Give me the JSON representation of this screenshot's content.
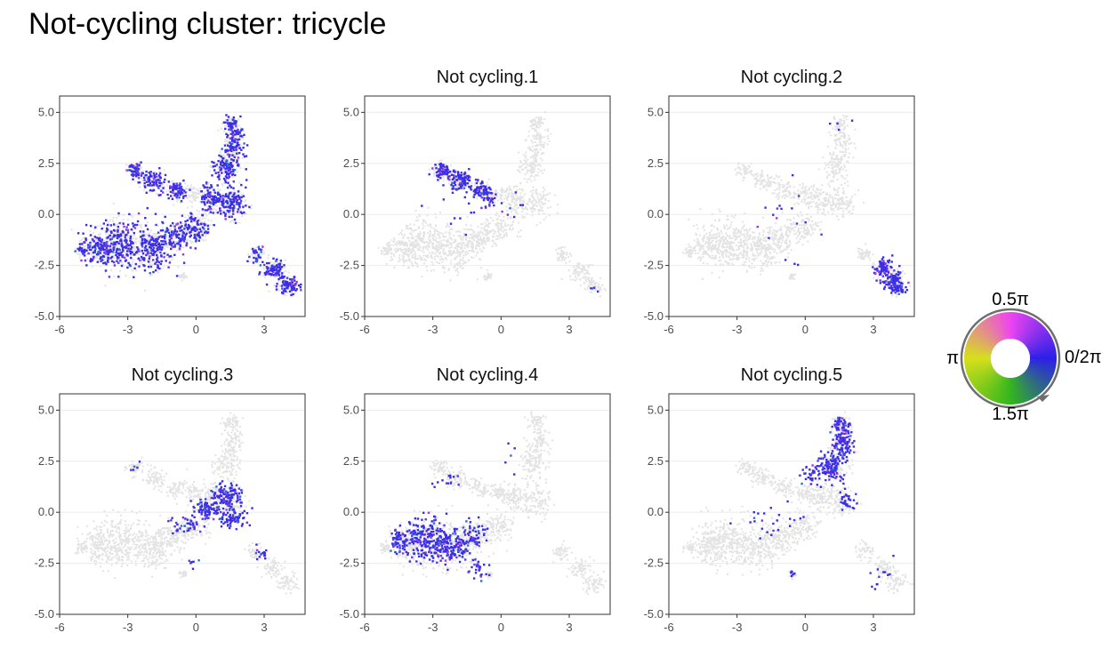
{
  "title": "Not-cycling cluster: tricycle",
  "colors": {
    "background_point": "#e3e3e3",
    "grid": "#ebebeb",
    "panel_border": "#333333",
    "tick_label": "#4d4d4d",
    "point_main": "#3a2ee6",
    "point_alt": [
      "#4f3df0",
      "#6a34e8",
      "#2f6fd0",
      "#9a3ae0"
    ],
    "wheel_stops": [
      {
        "angle": 0,
        "color": "#2b1fe8"
      },
      {
        "angle": 0.25,
        "color": "#ee44f0"
      },
      {
        "angle": 0.5,
        "color": "#d6e01a"
      },
      {
        "angle": 0.75,
        "color": "#33b61d"
      },
      {
        "angle": 1.0,
        "color": "#2b1fe8"
      }
    ]
  },
  "legend": {
    "labels": {
      "top": "0.5π",
      "right": "0/2π",
      "left": "π",
      "bottom": "1.5π"
    }
  },
  "chart_data": {
    "type": "scatter",
    "description_free": true,
    "xlim": [
      -6,
      4.8
    ],
    "ylim": [
      -5,
      5.8
    ],
    "x_ticks": [
      -6,
      -3,
      0,
      3
    ],
    "x_tick_labels": [
      "-6",
      "-3",
      "0",
      "3"
    ],
    "y_ticks": [
      -5,
      -2.5,
      0,
      2.5,
      5
    ],
    "y_tick_labels": [
      "-5.0",
      "-2.5",
      "0.0",
      "2.5",
      "5.0"
    ],
    "grid": true,
    "legend_position": "right",
    "background_shape": [
      [
        -5.1,
        -1.7,
        0.25,
        0.25
      ],
      [
        -4.3,
        -1.6,
        0.6,
        0.7
      ],
      [
        -3.4,
        -1.4,
        1.1,
        1.1
      ],
      [
        -2.0,
        -1.7,
        0.9,
        0.9
      ],
      [
        -1.0,
        -1.1,
        0.7,
        0.6
      ],
      [
        -0.1,
        -0.6,
        0.6,
        0.6
      ],
      [
        -2.7,
        2.2,
        0.35,
        0.35
      ],
      [
        -1.9,
        1.7,
        0.5,
        0.45
      ],
      [
        -0.9,
        1.2,
        0.45,
        0.4
      ],
      [
        -0.1,
        1.0,
        0.4,
        0.4
      ],
      [
        0.6,
        0.8,
        0.5,
        0.6
      ],
      [
        1.5,
        0.6,
        0.6,
        0.7
      ],
      [
        1.3,
        2.4,
        0.5,
        0.7
      ],
      [
        1.6,
        3.6,
        0.4,
        0.8
      ],
      [
        1.5,
        4.5,
        0.3,
        0.3
      ],
      [
        2.6,
        -1.9,
        0.35,
        0.35
      ],
      [
        3.4,
        -2.7,
        0.45,
        0.45
      ],
      [
        4.0,
        -3.4,
        0.45,
        0.4
      ],
      [
        -0.6,
        -3.0,
        0.15,
        0.15
      ]
    ],
    "panels": [
      {
        "title": "",
        "clusters": [
          [
            -5.1,
            -1.7,
            0.25,
            0.25,
            20
          ],
          [
            -4.3,
            -1.6,
            0.6,
            0.7,
            90
          ],
          [
            -3.4,
            -1.4,
            1.1,
            1.1,
            200
          ],
          [
            -2.0,
            -1.7,
            0.9,
            0.9,
            150
          ],
          [
            -1.0,
            -1.1,
            0.7,
            0.6,
            90
          ],
          [
            -0.1,
            -0.6,
            0.6,
            0.6,
            80
          ],
          [
            -2.7,
            2.2,
            0.35,
            0.35,
            50
          ],
          [
            -1.9,
            1.7,
            0.5,
            0.45,
            70
          ],
          [
            -0.9,
            1.2,
            0.45,
            0.4,
            60
          ],
          [
            0.6,
            0.8,
            0.5,
            0.6,
            80
          ],
          [
            1.5,
            0.6,
            0.6,
            0.7,
            110
          ],
          [
            1.3,
            2.4,
            0.5,
            0.7,
            110
          ],
          [
            1.6,
            3.6,
            0.4,
            0.8,
            90
          ],
          [
            1.5,
            4.5,
            0.3,
            0.3,
            30
          ],
          [
            3.4,
            -2.7,
            0.45,
            0.45,
            80
          ],
          [
            4.0,
            -3.4,
            0.45,
            0.4,
            70
          ],
          [
            2.6,
            -1.9,
            0.35,
            0.35,
            25
          ]
        ]
      },
      {
        "title": "Not cycling.1",
        "clusters": [
          [
            -2.6,
            2.2,
            0.35,
            0.35,
            60
          ],
          [
            -1.8,
            1.7,
            0.5,
            0.45,
            90
          ],
          [
            -0.9,
            1.2,
            0.45,
            0.4,
            60
          ],
          [
            -0.6,
            0.7,
            0.3,
            0.3,
            20
          ],
          [
            -2.0,
            0.2,
            1.5,
            1.0,
            12
          ],
          [
            0.5,
            0.5,
            0.6,
            0.6,
            8
          ],
          [
            4.0,
            -3.6,
            0.3,
            0.2,
            4
          ]
        ]
      },
      {
        "title": "Not cycling.2",
        "clusters": [
          [
            3.4,
            -2.6,
            0.35,
            0.4,
            70
          ],
          [
            3.8,
            -3.2,
            0.45,
            0.4,
            90
          ],
          [
            4.1,
            -3.6,
            0.3,
            0.2,
            30
          ],
          [
            -1.0,
            0.0,
            2.0,
            1.0,
            14
          ],
          [
            1.2,
            4.5,
            0.6,
            0.3,
            4
          ],
          [
            -0.5,
            -2.5,
            0.4,
            0.5,
            3
          ]
        ]
      },
      {
        "title": "Not cycling.3",
        "clusters": [
          [
            1.3,
            0.8,
            0.6,
            0.5,
            120
          ],
          [
            0.4,
            0.2,
            0.5,
            0.4,
            80
          ],
          [
            1.6,
            -0.2,
            0.6,
            0.4,
            70
          ],
          [
            -0.5,
            -0.5,
            0.6,
            0.4,
            40
          ],
          [
            2.8,
            -2.0,
            0.3,
            0.3,
            15
          ],
          [
            -2.7,
            2.3,
            0.2,
            0.2,
            5
          ],
          [
            -0.2,
            -2.5,
            0.3,
            0.3,
            6
          ]
        ]
      },
      {
        "title": "Not cycling.4",
        "clusters": [
          [
            -4.5,
            -1.4,
            0.4,
            0.5,
            60
          ],
          [
            -3.4,
            -1.2,
            0.9,
            0.9,
            180
          ],
          [
            -2.3,
            -1.6,
            0.8,
            0.8,
            150
          ],
          [
            -1.2,
            -1.0,
            0.5,
            0.6,
            50
          ],
          [
            -1.0,
            -2.8,
            0.4,
            0.4,
            25
          ],
          [
            -2.5,
            1.5,
            0.6,
            0.4,
            14
          ],
          [
            0.4,
            2.5,
            0.4,
            0.6,
            5
          ]
        ]
      },
      {
        "title": "Not cycling.5",
        "clusters": [
          [
            1.0,
            2.2,
            0.5,
            0.6,
            120
          ],
          [
            1.6,
            3.5,
            0.4,
            0.8,
            120
          ],
          [
            1.5,
            4.4,
            0.3,
            0.3,
            30
          ],
          [
            0.2,
            1.8,
            0.4,
            0.4,
            30
          ],
          [
            1.8,
            0.6,
            0.4,
            0.5,
            30
          ],
          [
            -1.5,
            -0.2,
            1.3,
            0.8,
            24
          ],
          [
            3.2,
            -3.0,
            0.6,
            0.7,
            12
          ],
          [
            -0.6,
            -2.9,
            0.15,
            0.2,
            6
          ]
        ]
      }
    ]
  }
}
